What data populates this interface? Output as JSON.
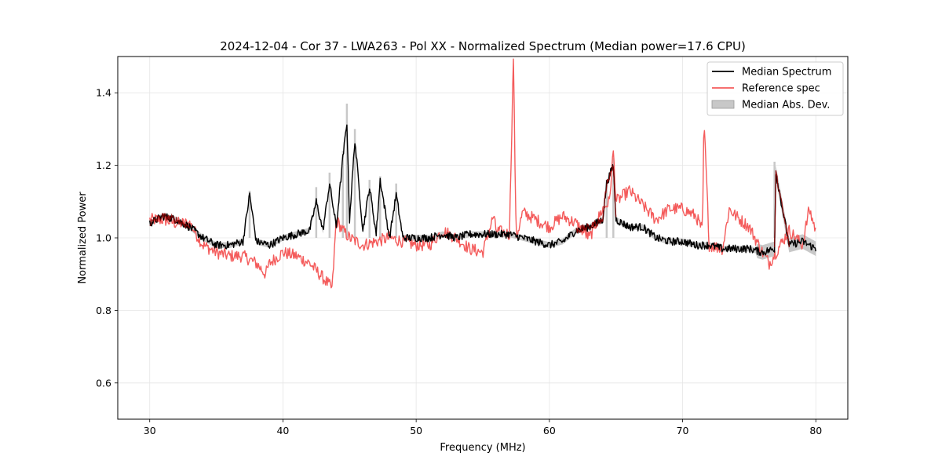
{
  "chart_data": {
    "type": "line",
    "title": "2024-12-04 - Cor 37 - LWA263 - Pol XX - Normalized Spectrum (Median power=17.6 CPU)",
    "xlabel": "Frequency (MHz)",
    "ylabel": "Normalized Power",
    "xlim": [
      27.6,
      82.4
    ],
    "ylim": [
      0.5,
      1.5
    ],
    "xticks": [
      30,
      40,
      50,
      60,
      70,
      80
    ],
    "yticks": [
      0.6,
      0.8,
      1.0,
      1.2,
      1.4
    ],
    "xtick_labels": [
      "30",
      "40",
      "50",
      "60",
      "70",
      "80"
    ],
    "ytick_labels": [
      "0.6",
      "0.8",
      "1.0",
      "1.2",
      "1.4"
    ],
    "grid": true,
    "legend_position": "top-right",
    "series": [
      {
        "name": "Median Spectrum",
        "color": "#000000",
        "x": [
          30,
          31,
          32,
          33,
          34,
          35,
          36,
          37,
          37.5,
          38,
          39,
          40,
          41,
          42,
          42.5,
          43,
          43.5,
          44,
          44.5,
          44.8,
          45,
          45.4,
          46,
          46.5,
          47,
          47.3,
          48,
          48.5,
          49,
          50,
          51,
          52,
          53,
          54,
          55,
          56,
          57,
          58,
          59,
          60,
          61,
          62,
          63,
          64,
          64.3,
          64.8,
          65,
          66,
          67,
          68,
          69,
          70,
          71,
          72,
          73,
          74,
          75,
          76,
          76.9,
          77,
          78,
          79,
          80
        ],
        "y": [
          1.04,
          1.06,
          1.05,
          1.03,
          1.0,
          0.98,
          0.98,
          0.99,
          1.12,
          0.99,
          0.98,
          1.0,
          1.01,
          1.02,
          1.1,
          1.02,
          1.15,
          1.03,
          1.22,
          1.32,
          1.05,
          1.27,
          1.02,
          1.14,
          1.01,
          1.16,
          1.0,
          1.12,
          1.0,
          1.0,
          1.0,
          1.01,
          1.0,
          1.01,
          1.01,
          1.01,
          1.01,
          1.0,
          0.99,
          0.98,
          0.99,
          1.02,
          1.03,
          1.05,
          1.15,
          1.2,
          1.05,
          1.03,
          1.03,
          1.0,
          0.99,
          0.99,
          0.98,
          0.98,
          0.97,
          0.97,
          0.97,
          0.96,
          0.97,
          1.18,
          0.98,
          0.99,
          0.97
        ]
      },
      {
        "name": "Reference spec",
        "color": "#f45b5b",
        "x": [
          30,
          31,
          32,
          33,
          34,
          35,
          36,
          37,
          38,
          38.7,
          39,
          40,
          41,
          42,
          43,
          43.7,
          44,
          44.5,
          45,
          46,
          47,
          48,
          49,
          50,
          51,
          52,
          53,
          54,
          55,
          55.8,
          56,
          57,
          57.3,
          57.5,
          58,
          59,
          60,
          61,
          62,
          63,
          64,
          64.5,
          64.8,
          65,
          66,
          67,
          68,
          69,
          70,
          71,
          71.5,
          71.6,
          72,
          73,
          73.5,
          74,
          75,
          76,
          76.5,
          77,
          78,
          79,
          79.5,
          80
        ],
        "y": [
          1.05,
          1.05,
          1.04,
          1.04,
          0.98,
          0.96,
          0.95,
          0.95,
          0.93,
          0.9,
          0.93,
          0.96,
          0.95,
          0.93,
          0.89,
          0.86,
          1.05,
          1.02,
          1.0,
          0.98,
          0.99,
          1.0,
          0.99,
          0.98,
          0.98,
          1.02,
          1.0,
          0.97,
          0.96,
          1.06,
          1.02,
          1.01,
          1.5,
          1.0,
          1.07,
          1.05,
          1.03,
          1.06,
          1.04,
          1.0,
          1.08,
          1.1,
          1.24,
          1.1,
          1.13,
          1.09,
          1.05,
          1.08,
          1.08,
          1.06,
          1.02,
          1.33,
          0.98,
          0.97,
          1.08,
          1.06,
          1.03,
          0.96,
          0.93,
          0.96,
          1.02,
          0.98,
          1.08,
          1.02
        ]
      }
    ],
    "band": {
      "name": "Median Abs. Dev.",
      "color": "#c8c8c8",
      "peaks_x": [
        37.5,
        42.5,
        43.5,
        44.5,
        44.8,
        45.4,
        46.5,
        47.3,
        48.5,
        64.3,
        64.8,
        76.9
      ],
      "peaks_y": [
        1.13,
        1.14,
        1.18,
        1.24,
        1.37,
        1.3,
        1.16,
        1.17,
        1.15,
        1.16,
        1.22,
        1.21
      ]
    }
  }
}
